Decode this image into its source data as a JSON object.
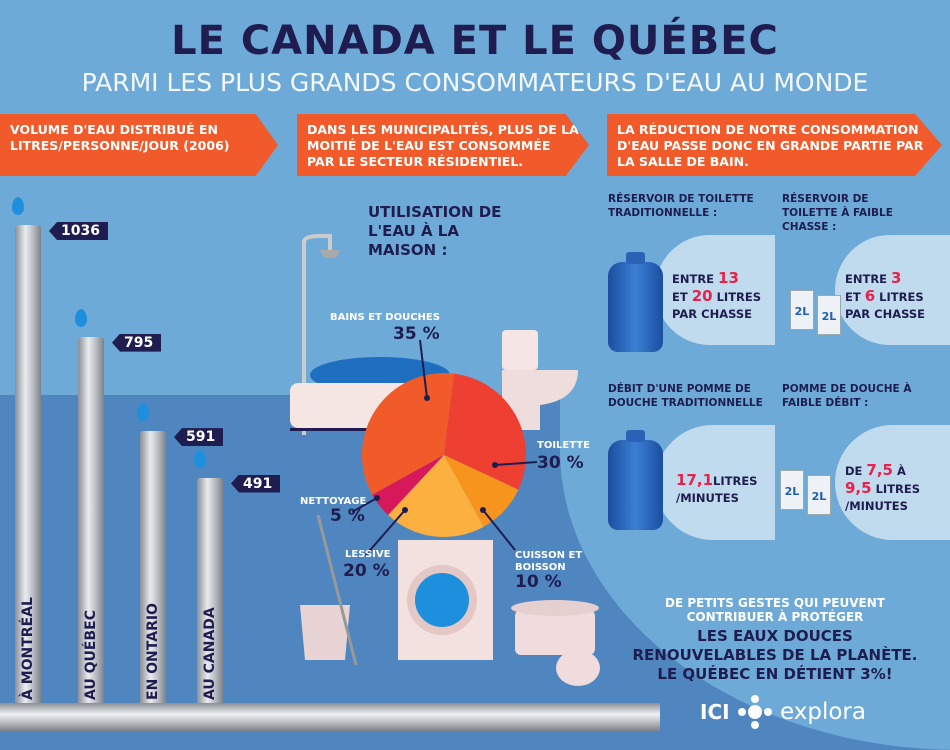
{
  "header": {
    "title": "LE CANADA ET LE QUÉBEC",
    "subtitle": "PARMI LES PLUS GRANDS CONSOMMATEURS D'EAU AU MONDE"
  },
  "banners": [
    {
      "text": "VOLUME D'EAU DISTRIBUÉ EN LITRES/PERSONNE/JOUR (2006)"
    },
    {
      "text": "DANS LES MUNICIPALITÉS, PLUS DE LA MOITIÉ DE L'EAU EST CONSOMMÉE PAR LE SECTEUR RÉSIDENTIEL."
    },
    {
      "text": "LA RÉDUCTION DE NOTRE CONSOMMATION D'EAU PASSE DONC EN GRANDE PARTIE PAR LA SALLE DE BAIN."
    }
  ],
  "chart_data": [
    {
      "type": "bar",
      "categories": [
        "À MONTRÉAL",
        "AU QUÉBEC",
        "EN ONTARIO",
        "AU CANADA"
      ],
      "values": [
        1036,
        795,
        591,
        491
      ],
      "value_labels": [
        "1036",
        "795",
        "591",
        "491"
      ]
    },
    {
      "type": "pie",
      "title": "UTILISATION DE L'EAU À LA MAISON :",
      "slices": [
        {
          "label": "TOILETTE",
          "value": 30,
          "value_label": "30 %",
          "color": "#ed4033"
        },
        {
          "label": "CUISSON ET BOISSON",
          "value": 10,
          "value_label": "10 %",
          "color": "#f7941d"
        },
        {
          "label": "LESSIVE",
          "value": 20,
          "value_label": "20 %",
          "color": "#fbb040"
        },
        {
          "label": "NETTOYAGE",
          "value": 5,
          "value_label": "5 %",
          "color": "#d7195b"
        },
        {
          "label": "BAINS ET DOUCHES",
          "value": 35,
          "value_label": "35 %",
          "color": "#f15a29"
        }
      ]
    }
  ],
  "comparisons": {
    "toilet_trad": {
      "heading": "RÉSERVOIR DE TOILETTE TRADITIONNELLE :",
      "l1a": "ENTRE ",
      "n1": "13",
      "l2a": "ET ",
      "n2": "20",
      "l2b": " LITRES",
      "l3": "PAR CHASSE"
    },
    "toilet_low": {
      "heading": "RÉSERVOIR DE TOILETTE À FAIBLE CHASSE :",
      "l1a": "ENTRE ",
      "n1": "3",
      "l2a": "ET ",
      "n2": "6",
      "l2b": " LITRES",
      "l3": "PAR CHASSE",
      "carton": "2L"
    },
    "shower_trad": {
      "heading": "DÉBIT D'UNE POMME DE DOUCHE TRADITIONNELLE",
      "n1": "17,1",
      "l1b": "LITRES",
      "l2": "/MINUTES"
    },
    "shower_low": {
      "heading": "POMME DE DOUCHE À FAIBLE DÉBIT :",
      "l1a": "DE ",
      "n1": "7,5",
      "l1b": " À",
      "n2": "9,5",
      "l2b": " LITRES",
      "l3": "/MINUTES",
      "carton": "2L"
    }
  },
  "footer": {
    "line1": "DE PETITS GESTES QUI PEUVENT",
    "line2": "CONTRIBUER À PROTÉGER",
    "line3": "LES EAUX DOUCES",
    "line4": "RENOUVELABLES DE LA PLANÈTE.",
    "line5": "LE QUÉBEC EN DÉTIENT 3%!",
    "logo_ici": "ICI",
    "logo_explora": "explora"
  },
  "colors": {
    "title": "#1f1d4f",
    "banner": "#f15a2b",
    "background": "#6eaad8",
    "accent_number": "#e8214b"
  }
}
